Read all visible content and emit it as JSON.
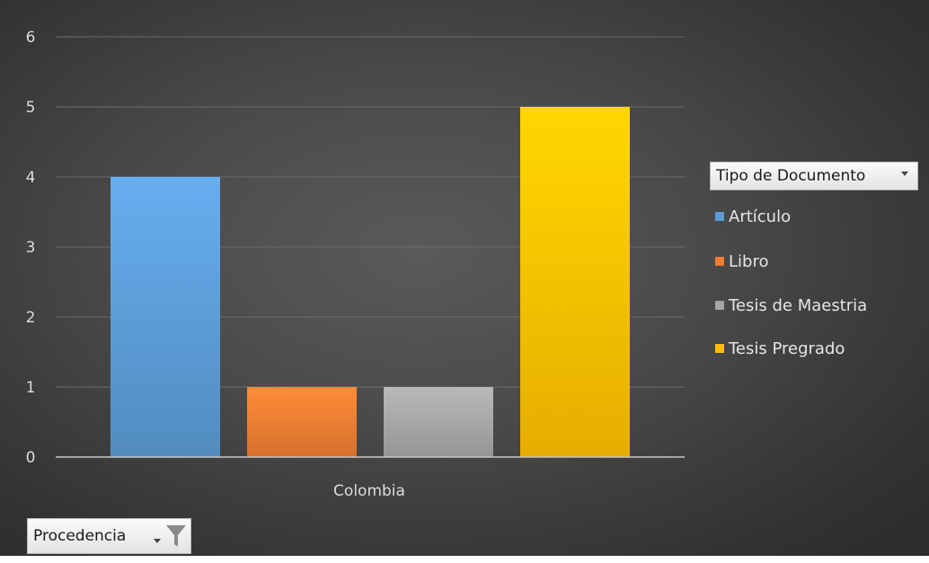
{
  "chart_data": {
    "type": "bar",
    "categories": [
      "Colombia"
    ],
    "series": [
      {
        "name": "Artículo",
        "values": [
          4
        ],
        "color": "#5b9bd5"
      },
      {
        "name": "Libro",
        "values": [
          1
        ],
        "color": "#ed7d31"
      },
      {
        "name": "Tesis de Maestria",
        "values": [
          1
        ],
        "color": "#a5a5a5"
      },
      {
        "name": "Tesis Pregrado",
        "values": [
          5
        ],
        "color": "#ffc000"
      }
    ],
    "ylim": [
      0,
      6
    ],
    "yticks": [
      "0",
      "1",
      "2",
      "3",
      "4",
      "5",
      "6"
    ],
    "grid": true,
    "legend_position": "right"
  },
  "legend": {
    "title": "Tipo de Documento",
    "items": [
      {
        "label": "Artículo",
        "color": "#5b9bd5"
      },
      {
        "label": "Libro",
        "color": "#ed7d31"
      },
      {
        "label": "Tesis de Maestria",
        "color": "#a5a5a5"
      },
      {
        "label": "Tesis Pregrado",
        "color": "#ffc000"
      }
    ]
  },
  "axis_field_button": {
    "label": "Procedencia",
    "icon": "filter-icon"
  }
}
